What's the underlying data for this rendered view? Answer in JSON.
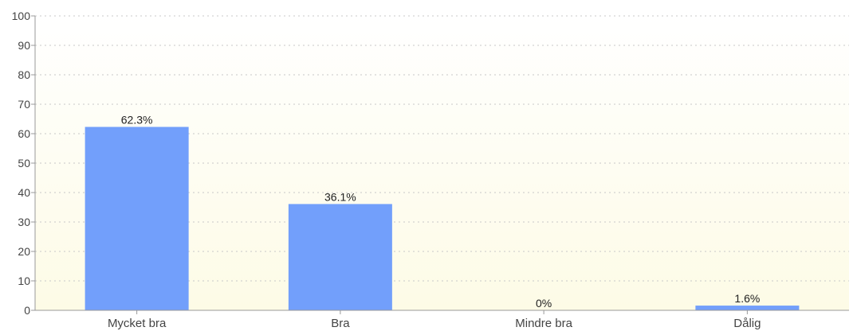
{
  "chart_data": {
    "type": "bar",
    "categories": [
      "Mycket bra",
      "Bra",
      "Mindre bra",
      "Dålig"
    ],
    "values": [
      62.3,
      36.1,
      0,
      1.6
    ],
    "data_labels": [
      "62.3%",
      "36.1%",
      "0%",
      "1.6%"
    ],
    "y_ticks": [
      "0",
      "10",
      "20",
      "30",
      "40",
      "50",
      "60",
      "70",
      "80",
      "90",
      "100"
    ],
    "ylim": [
      0,
      100
    ],
    "grid": true,
    "legend": "none",
    "colors": {
      "bar": "#729ffb",
      "plot_bg_top": "#ffffff",
      "plot_bg_bottom": "#fdfbe6",
      "grid": "#c8c8c8",
      "axis": "#999999"
    }
  }
}
